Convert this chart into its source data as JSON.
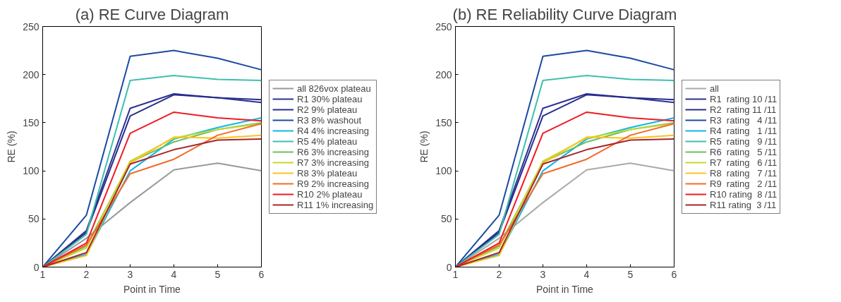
{
  "chart_data": [
    {
      "type": "line",
      "title": "(a) RE Curve Diagram",
      "xlabel": "Point in Time",
      "ylabel": "RE (%)",
      "x": [
        1,
        2,
        3,
        4,
        5,
        6
      ],
      "xlim": [
        1,
        6
      ],
      "ylim": [
        0,
        250
      ],
      "xticks": [
        1,
        2,
        3,
        4,
        5,
        6
      ],
      "yticks": [
        0,
        50,
        100,
        150,
        200,
        250
      ],
      "grid": false,
      "legend": "right",
      "series": [
        {
          "name": "all 826vox plateau",
          "color": "#999999",
          "values": [
            0,
            30,
            67,
            101,
            108,
            100
          ]
        },
        {
          "name": "R1 30% plateau",
          "color": "#2e3192",
          "values": [
            0,
            38,
            165,
            180,
            176,
            171
          ]
        },
        {
          "name": "R2 9% plateau",
          "color": "#262d8c",
          "values": [
            0,
            36,
            157,
            179,
            176,
            174
          ]
        },
        {
          "name": "R3 8% washout",
          "color": "#1b4aa0",
          "values": [
            0,
            54,
            219,
            225,
            217,
            205
          ]
        },
        {
          "name": "R4 4% increasing",
          "color": "#13b5ea",
          "values": [
            0,
            13,
            100,
            133,
            145,
            155
          ]
        },
        {
          "name": "R5 4% plateau",
          "color": "#3fbfae",
          "values": [
            0,
            34,
            194,
            199,
            195,
            194
          ]
        },
        {
          "name": "R6 3% increasing",
          "color": "#6cbf5a",
          "values": [
            0,
            22,
            109,
            130,
            143,
            150
          ]
        },
        {
          "name": "R7 3% increasing",
          "color": "#c5d82e",
          "values": [
            0,
            20,
            110,
            134,
            143,
            149
          ]
        },
        {
          "name": "R8 3% plateau",
          "color": "#fbc41a",
          "values": [
            0,
            12,
            108,
            135,
            134,
            137
          ]
        },
        {
          "name": "R9 2% increasing",
          "color": "#f26b2a",
          "values": [
            0,
            23,
            97,
            112,
            137,
            149
          ]
        },
        {
          "name": "R10 2% plateau",
          "color": "#ed1c24",
          "values": [
            0,
            25,
            139,
            161,
            155,
            152
          ]
        },
        {
          "name": "R11 1% increasing",
          "color": "#a6262c",
          "values": [
            0,
            15,
            107,
            122,
            132,
            133
          ]
        }
      ]
    },
    {
      "type": "line",
      "title": "(b) RE Reliability Curve Diagram",
      "xlabel": "Point in Time",
      "ylabel": "RE (%)",
      "x": [
        1,
        2,
        3,
        4,
        5,
        6
      ],
      "xlim": [
        1,
        6
      ],
      "ylim": [
        0,
        250
      ],
      "xticks": [
        1,
        2,
        3,
        4,
        5,
        6
      ],
      "yticks": [
        0,
        50,
        100,
        150,
        200,
        250
      ],
      "grid": false,
      "legend": "right",
      "series": [
        {
          "name": "all",
          "color": "#aaaaaa",
          "values": [
            0,
            30,
            67,
            101,
            108,
            100
          ]
        },
        {
          "name": "R1  rating 10 /11",
          "color": "#2e3192",
          "values": [
            0,
            38,
            165,
            180,
            176,
            171
          ]
        },
        {
          "name": "R2  rating 11 /11",
          "color": "#262d8c",
          "values": [
            0,
            36,
            157,
            179,
            176,
            174
          ]
        },
        {
          "name": "R3  rating   4 /11",
          "color": "#1b4aa0",
          "values": [
            0,
            54,
            219,
            225,
            217,
            205
          ]
        },
        {
          "name": "R4  rating   1 /11",
          "color": "#13b5ea",
          "values": [
            0,
            13,
            100,
            133,
            145,
            155
          ]
        },
        {
          "name": "R5  rating   9 /11",
          "color": "#3fbfae",
          "values": [
            0,
            34,
            194,
            199,
            195,
            194
          ]
        },
        {
          "name": "R6  rating   5 /11",
          "color": "#6cbf5a",
          "values": [
            0,
            22,
            109,
            130,
            143,
            150
          ]
        },
        {
          "name": "R7  rating   6 /11",
          "color": "#c5d82e",
          "values": [
            0,
            20,
            110,
            134,
            143,
            149
          ]
        },
        {
          "name": "R8  rating   7 /11",
          "color": "#fbc41a",
          "values": [
            0,
            12,
            108,
            135,
            134,
            137
          ]
        },
        {
          "name": "R9  rating   2 /11",
          "color": "#f26b2a",
          "values": [
            0,
            23,
            97,
            112,
            137,
            149
          ]
        },
        {
          "name": "R10 rating  8 /11",
          "color": "#ed1c24",
          "values": [
            0,
            25,
            139,
            161,
            155,
            152
          ]
        },
        {
          "name": "R11 rating  3 /11",
          "color": "#a6262c",
          "values": [
            0,
            15,
            107,
            122,
            132,
            133
          ]
        }
      ]
    }
  ]
}
